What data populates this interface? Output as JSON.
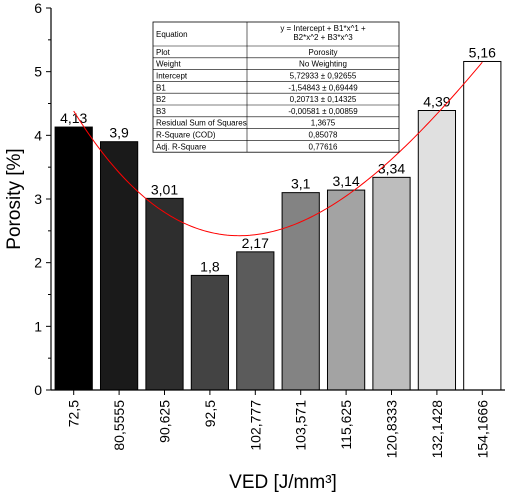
{
  "chart_data": {
    "type": "bar",
    "xlabel": "VED [J/mm³]",
    "ylabel": "Porosity [%]",
    "ylim": [
      0,
      6
    ],
    "y_ticks": [
      "0",
      "1",
      "2",
      "3",
      "4",
      "5",
      "6"
    ],
    "categories": [
      "72,5",
      "80,5555",
      "90,625",
      "92,5",
      "102,777",
      "103,571",
      "115,625",
      "120,8333",
      "132,1428",
      "154,1666"
    ],
    "values": [
      4.13,
      3.9,
      3.01,
      1.8,
      2.17,
      3.1,
      3.14,
      3.34,
      4.39,
      5.16
    ],
    "value_labels": [
      "4,13",
      "3,9",
      "3,01",
      "1,8",
      "2,17",
      "3,1",
      "3,14",
      "3,34",
      "4,39",
      "5,16"
    ],
    "bar_colors": [
      "#000000",
      "#1a1a1a",
      "#2e2e2e",
      "#434343",
      "#5b5b5b",
      "#838383",
      "#a3a3a3",
      "#bdbdbd",
      "#e0e0e0",
      "#ffffff"
    ],
    "fit_line": {
      "color": "#ff0000",
      "intercept": 5.72933,
      "b1": -1.54843,
      "b2": 0.20713,
      "b3": -0.00581
    },
    "grid": false,
    "stats_table": {
      "rows": [
        [
          "Equation",
          "y = Intercept + B1*x^1 + B2*x^2 + B3*x^3"
        ],
        [
          "Plot",
          "Porosity"
        ],
        [
          "Weight",
          "No Weighting"
        ],
        [
          "Intercept",
          "5,72933 ± 0,92655"
        ],
        [
          "B1",
          "-1,54843 ± 0,69449"
        ],
        [
          "B2",
          "0,20713 ± 0,14325"
        ],
        [
          "B3",
          "-0,00581 ± 0,00859"
        ],
        [
          "Residual Sum of Squares",
          "1,3675"
        ],
        [
          "R-Square (COD)",
          "0,85078"
        ],
        [
          "Adj. R-Square",
          "0,77616"
        ]
      ]
    }
  }
}
